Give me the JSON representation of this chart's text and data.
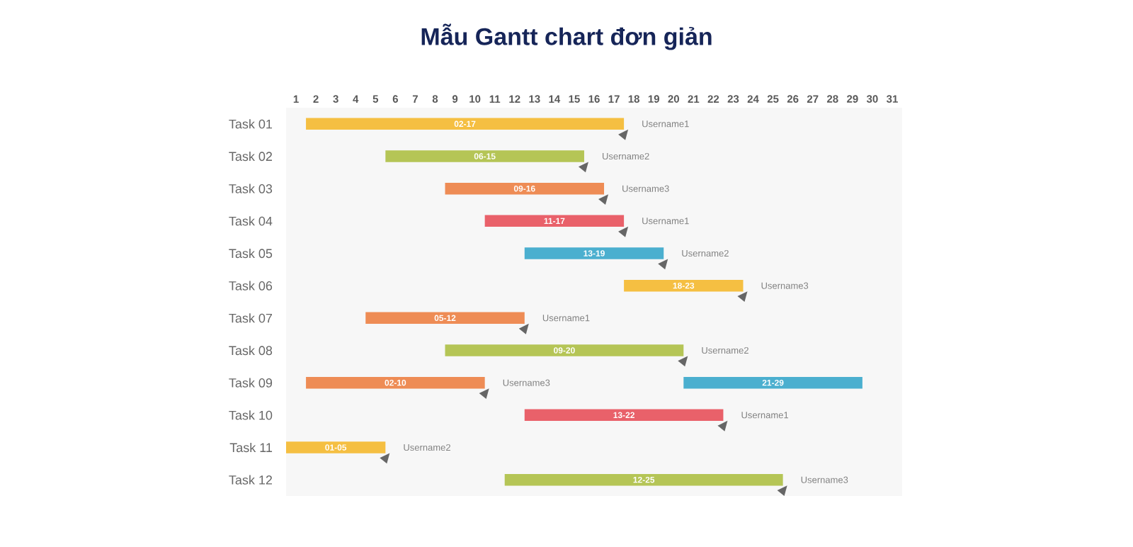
{
  "chart_data": {
    "type": "bar",
    "orientation": "horizontal",
    "title": "Mẫu Gantt chart đơn giản",
    "categories": [
      "Task 01",
      "Task 02",
      "Task 03",
      "Task 04",
      "Task 05",
      "Task 06",
      "Task 07",
      "Task 08",
      "Task 09",
      "Task 10",
      "Task 11",
      "Task 12"
    ],
    "xlim": [
      0.5,
      31.5
    ],
    "xticks": [
      1,
      2,
      3,
      4,
      5,
      6,
      7,
      8,
      9,
      10,
      11,
      12,
      13,
      14,
      15,
      16,
      17,
      18,
      19,
      20,
      21,
      22,
      23,
      24,
      25,
      26,
      27,
      28,
      29,
      30,
      31
    ],
    "series": [
      {
        "base": [
          1.5,
          5.5,
          8.5,
          10.5,
          12.5,
          17.5,
          4.5,
          8.5,
          1.5,
          12.5,
          0.5,
          11.5
        ],
        "values": [
          16,
          10,
          8,
          7,
          7,
          6,
          8,
          12,
          9,
          10,
          5,
          14
        ],
        "colors": [
          "#f5bf42",
          "#b5c556",
          "#ee8c55",
          "#e9616a",
          "#4bafcf",
          "#f5bf42",
          "#ee8c55",
          "#b5c556",
          "#ee8c55",
          "#e9616a",
          "#f5bf42",
          "#b5c556"
        ],
        "value_labels": [
          "02-17",
          "06-15",
          "09-16",
          "11-17",
          "13-19",
          "18-23",
          "05-12",
          "09-20",
          "02-10",
          "13-22",
          "01-05",
          "12-25"
        ]
      },
      {
        "base": [
          null,
          null,
          null,
          null,
          null,
          null,
          null,
          null,
          20.5,
          null,
          null,
          null
        ],
        "values": [
          null,
          null,
          null,
          null,
          null,
          null,
          null,
          null,
          9,
          null,
          null,
          null
        ],
        "colors": [
          null,
          null,
          null,
          null,
          null,
          null,
          null,
          null,
          "#4bafcf",
          null,
          null,
          null
        ],
        "value_labels": [
          null,
          null,
          null,
          null,
          null,
          null,
          null,
          null,
          "21-29",
          null,
          null,
          null
        ]
      }
    ],
    "annotations": [
      {
        "text": "Username1",
        "x": 17.5,
        "y": "Task 01"
      },
      {
        "text": "Username2",
        "x": 15.5,
        "y": "Task 02"
      },
      {
        "text": "Username3",
        "x": 16.5,
        "y": "Task 03"
      },
      {
        "text": "Username1",
        "x": 17.5,
        "y": "Task 04"
      },
      {
        "text": "Username2",
        "x": 19.5,
        "y": "Task 05"
      },
      {
        "text": "Username3",
        "x": 23.5,
        "y": "Task 06"
      },
      {
        "text": "Username1",
        "x": 12.5,
        "y": "Task 07"
      },
      {
        "text": "Username2",
        "x": 20.5,
        "y": "Task 08"
      },
      {
        "text": "Username3",
        "x": 10.5,
        "y": "Task 09"
      },
      {
        "text": "Username1",
        "x": 22.5,
        "y": "Task 10"
      },
      {
        "text": "Username2",
        "x": 5.5,
        "y": "Task 11"
      },
      {
        "text": "Username3",
        "x": 25.5,
        "y": "Task 12"
      }
    ]
  }
}
